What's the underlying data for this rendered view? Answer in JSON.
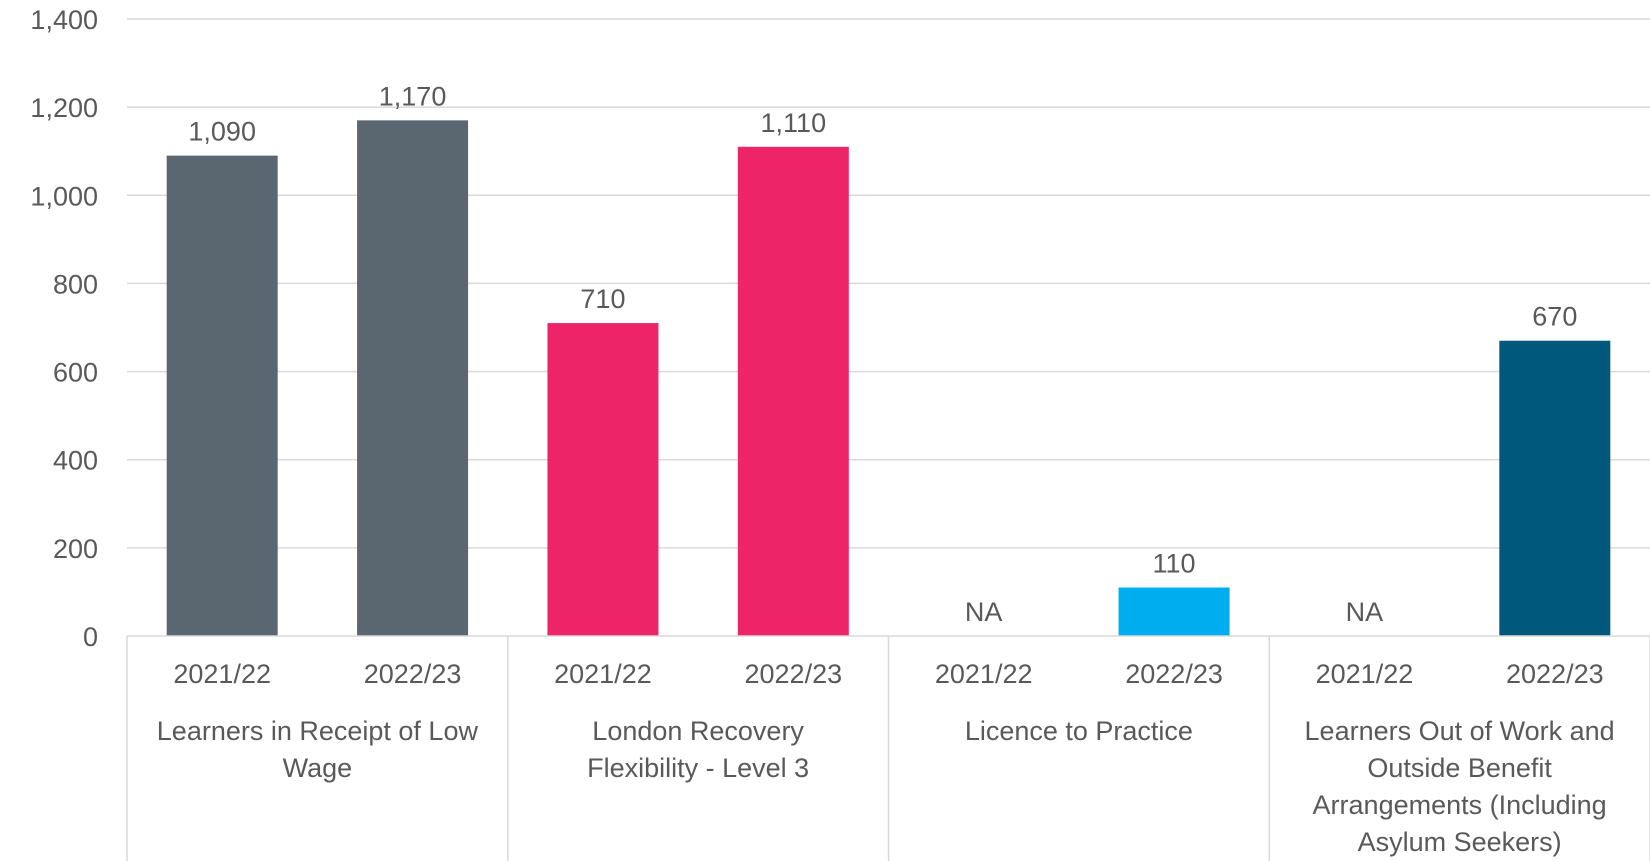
{
  "chart_data": {
    "type": "bar",
    "ylim": [
      0,
      1400
    ],
    "y_ticks": [
      0,
      200,
      400,
      600,
      800,
      1000,
      1200,
      1400
    ],
    "y_tick_labels": [
      "0",
      "200",
      "400",
      "600",
      "800",
      "1,000",
      "1,200",
      "1,400"
    ],
    "grid": true,
    "groups": [
      {
        "label_lines": [
          "Learners in Receipt of Low",
          "Wage"
        ],
        "color": "#5b6770",
        "bars": [
          {
            "category": "2021/22",
            "value": 1090,
            "label": "1,090"
          },
          {
            "category": "2022/23",
            "value": 1170,
            "label": "1,170"
          }
        ]
      },
      {
        "label_lines": [
          "London Recovery",
          "Flexibility - Level 3"
        ],
        "color": "#ee2469",
        "bars": [
          {
            "category": "2021/22",
            "value": 710,
            "label": "710"
          },
          {
            "category": "2022/23",
            "value": 1110,
            "label": "1,110"
          }
        ]
      },
      {
        "label_lines": [
          "Licence to Practice"
        ],
        "color": "#00aeef",
        "bars": [
          {
            "category": "2021/22",
            "value": null,
            "label": "NA"
          },
          {
            "category": "2022/23",
            "value": 110,
            "label": "110"
          }
        ]
      },
      {
        "label_lines": [
          "Learners Out of Work and",
          "Outside Benefit",
          "Arrangements (Including",
          "Asylum Seekers)"
        ],
        "color": "#00587c",
        "bars": [
          {
            "category": "2021/22",
            "value": null,
            "label": "NA"
          },
          {
            "category": "2022/23",
            "value": 670,
            "label": "670"
          }
        ]
      }
    ]
  },
  "colors": {
    "text": "#595959",
    "gridline": "#d9d9d9",
    "axis": "#d9d9d9"
  }
}
